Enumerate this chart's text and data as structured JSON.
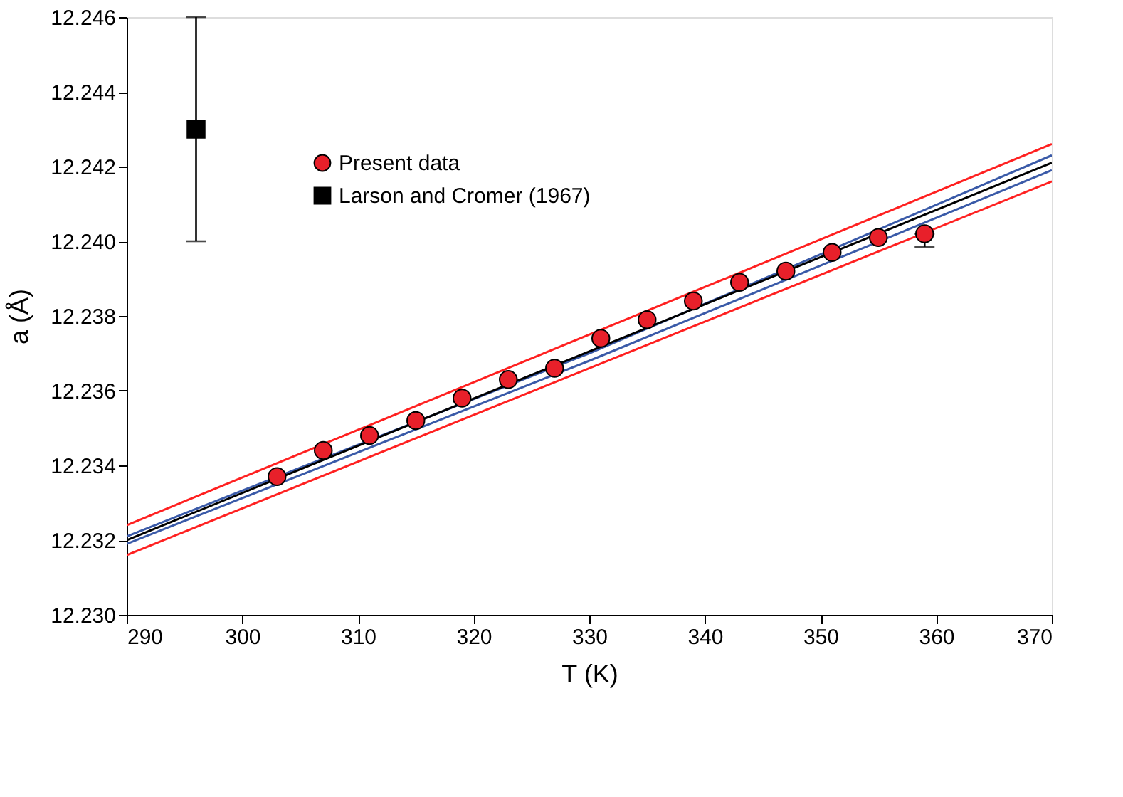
{
  "chart_data": {
    "type": "scatter",
    "xlabel": "T (K)",
    "ylabel": "a (Å)",
    "xlim": [
      290,
      370
    ],
    "xticks": [
      290,
      300,
      310,
      320,
      330,
      340,
      350,
      360,
      370
    ],
    "ylim": [
      12.23,
      12.246
    ],
    "yticks": [
      {
        "value": 12.23,
        "label": "12.230"
      },
      {
        "value": 12.232,
        "label": "12.232"
      },
      {
        "value": 12.234,
        "label": "12.234"
      },
      {
        "value": 12.236,
        "label": "12.236"
      },
      {
        "value": 12.238,
        "label": "12.238"
      },
      {
        "value": 12.24,
        "label": "12.240"
      },
      {
        "value": 12.242,
        "label": "12.242"
      },
      {
        "value": 12.244,
        "label": "12.244"
      },
      {
        "value": 12.246,
        "label": "12.246"
      }
    ],
    "grid": false,
    "legend": "top left",
    "series": [
      {
        "type": "line",
        "color": "#ff2020",
        "x": [
          290,
          370
        ],
        "values": [
          12.2324,
          12.2426
        ],
        "line_style": "solid"
      },
      {
        "type": "line",
        "color": "#ff2020",
        "x": [
          290,
          370
        ],
        "values": [
          12.2316,
          12.2416
        ],
        "line_style": "solid"
      },
      {
        "type": "line",
        "color": "#3a5aa8",
        "x": [
          290,
          330,
          370
        ],
        "values": [
          12.2321,
          12.237,
          12.2423
        ],
        "line_style": "solid"
      },
      {
        "type": "line",
        "color": "#3a5aa8",
        "x": [
          290,
          330,
          370
        ],
        "values": [
          12.2319,
          12.2368,
          12.2419
        ],
        "line_style": "solid"
      },
      {
        "type": "line",
        "color": "#000000",
        "x": [
          290,
          370
        ],
        "values": [
          12.232,
          12.2421
        ],
        "line_style": "solid"
      },
      {
        "name": "Present data",
        "color": "#e8202a",
        "marker": "circle",
        "x": [
          303,
          307,
          311,
          315,
          319,
          323,
          327,
          331,
          335,
          339,
          343,
          347,
          351,
          355,
          359
        ],
        "values": [
          12.2337,
          12.2344,
          12.2348,
          12.2352,
          12.2358,
          12.2363,
          12.2366,
          12.2374,
          12.2379,
          12.2384,
          12.2389,
          12.2392,
          12.2397,
          12.2401,
          12.2402
        ],
        "errors": [
          null,
          null,
          null,
          null,
          null,
          null,
          null,
          null,
          null,
          null,
          null,
          null,
          null,
          null,
          [
            12.23985,
            12.2402
          ]
        ]
      },
      {
        "name": "Larson and Cromer (1967)",
        "color": "#000000",
        "marker": "square",
        "x": [
          296
        ],
        "values": [
          12.243
        ],
        "errors": [
          0.003
        ]
      }
    ]
  }
}
